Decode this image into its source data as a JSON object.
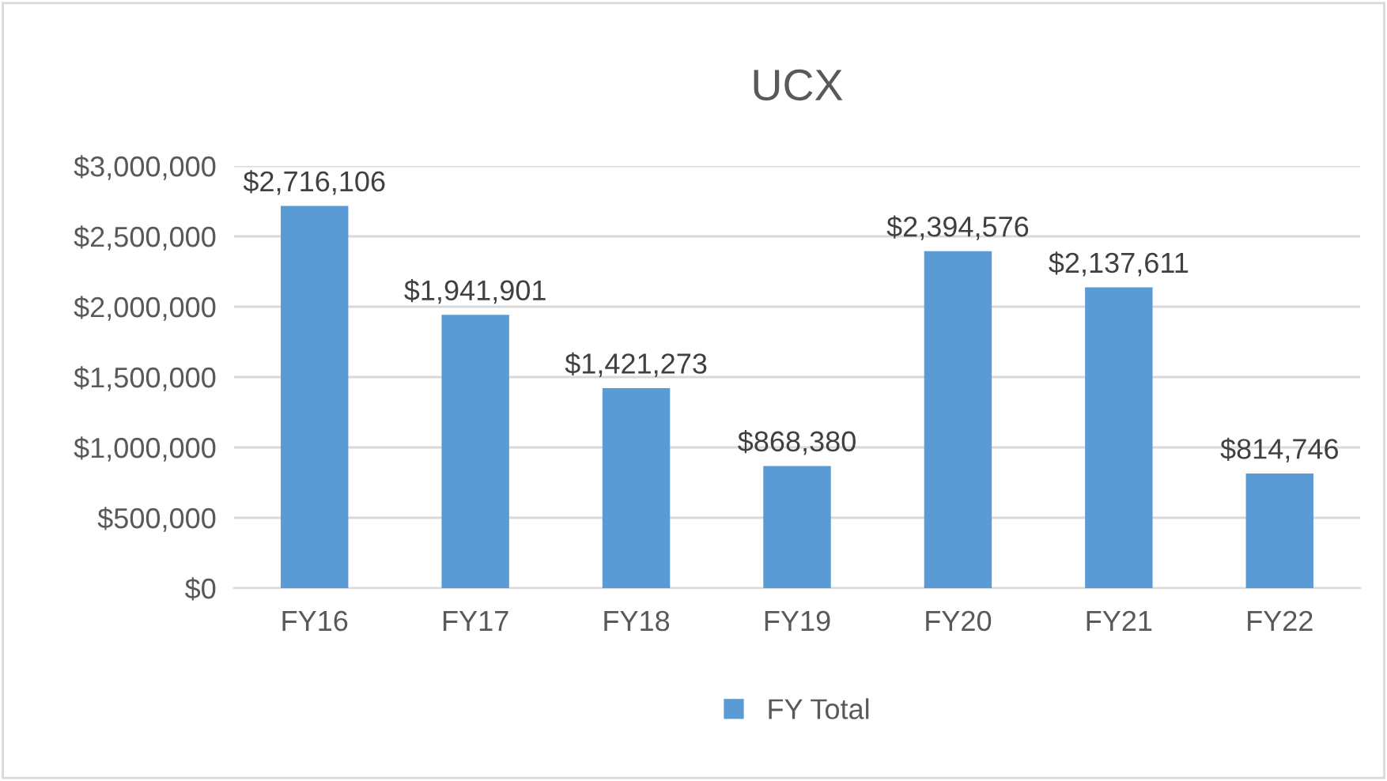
{
  "chart_data": {
    "type": "bar",
    "title": "UCX",
    "categories": [
      "FY16",
      "FY17",
      "FY18",
      "FY19",
      "FY20",
      "FY21",
      "FY22"
    ],
    "series": [
      {
        "name": "FY Total",
        "color": "#5b9bd5",
        "values": [
          2716106,
          1941901,
          1421273,
          868380,
          2394576,
          2137611,
          814746
        ],
        "value_labels": [
          "$2,716,106",
          "$1,941,901",
          "$1,421,273",
          "$868,380",
          "$2,394,576",
          "$2,137,611",
          "$814,746"
        ]
      }
    ],
    "ylim": [
      0,
      3000000
    ],
    "yticks": [
      {
        "value": 0,
        "label": "$0"
      },
      {
        "value": 500000,
        "label": "$500,000"
      },
      {
        "value": 1000000,
        "label": "$1,000,000"
      },
      {
        "value": 1500000,
        "label": "$1,500,000"
      },
      {
        "value": 2000000,
        "label": "$2,000,000"
      },
      {
        "value": 2500000,
        "label": "$2,500,000"
      },
      {
        "value": 3000000,
        "label": "$3,000,000"
      }
    ],
    "grid": "y",
    "legend": "bottom"
  }
}
